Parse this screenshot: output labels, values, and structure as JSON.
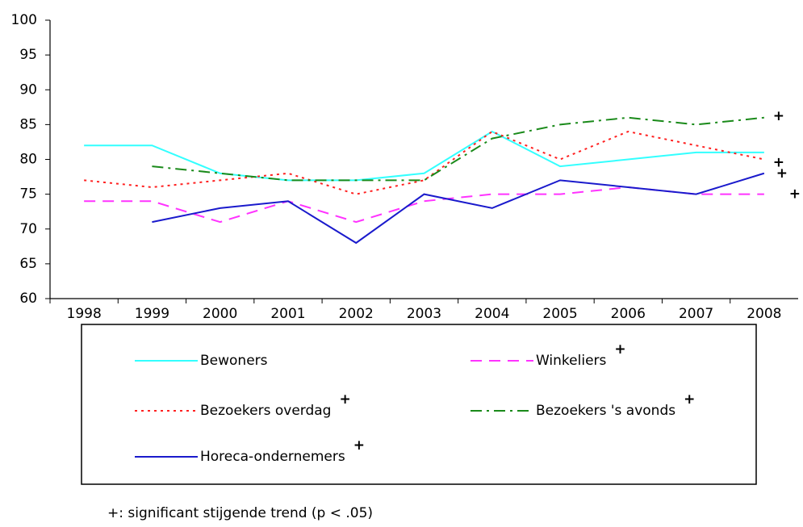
{
  "chart_data": {
    "type": "line",
    "categories": [
      "1998",
      "1999",
      "2000",
      "2001",
      "2002",
      "2003",
      "2004",
      "2005",
      "2006",
      "2007",
      "2008"
    ],
    "ylim": [
      60,
      100
    ],
    "yticks": [
      60,
      65,
      70,
      75,
      80,
      85,
      90,
      95,
      100
    ],
    "trend_mark": "+",
    "footnote": "+: significant stijgende trend (p < .05)",
    "series": [
      {
        "name": "Bewoners",
        "color": "#33ffff",
        "dash": "",
        "values": [
          82,
          82,
          78,
          77,
          77,
          78,
          84,
          79,
          80,
          81,
          81
        ]
      },
      {
        "name": "Winkeliers",
        "color": "#ff33ff",
        "dash": "14 9",
        "trend": true,
        "values": [
          74,
          74,
          71,
          74,
          71,
          74,
          75,
          75,
          76,
          75,
          75
        ]
      },
      {
        "name": "Bezoekers overdag",
        "color": "#ff2020",
        "dash": "3 5",
        "trend": true,
        "values": [
          77,
          76,
          77,
          78,
          75,
          77,
          84,
          80,
          84,
          82,
          80
        ]
      },
      {
        "name": "Bezoekers 's avonds",
        "color": "#1a8a1a",
        "dash": "14 6 3 6",
        "trend": true,
        "values": [
          null,
          79,
          78,
          77,
          77,
          77,
          83,
          85,
          86,
          85,
          86
        ]
      },
      {
        "name": "Horeca-ondernemers",
        "color": "#1a1acc",
        "dash": "",
        "trend": true,
        "values": [
          null,
          71,
          73,
          74,
          68,
          75,
          73,
          77,
          76,
          75,
          78
        ]
      }
    ]
  }
}
